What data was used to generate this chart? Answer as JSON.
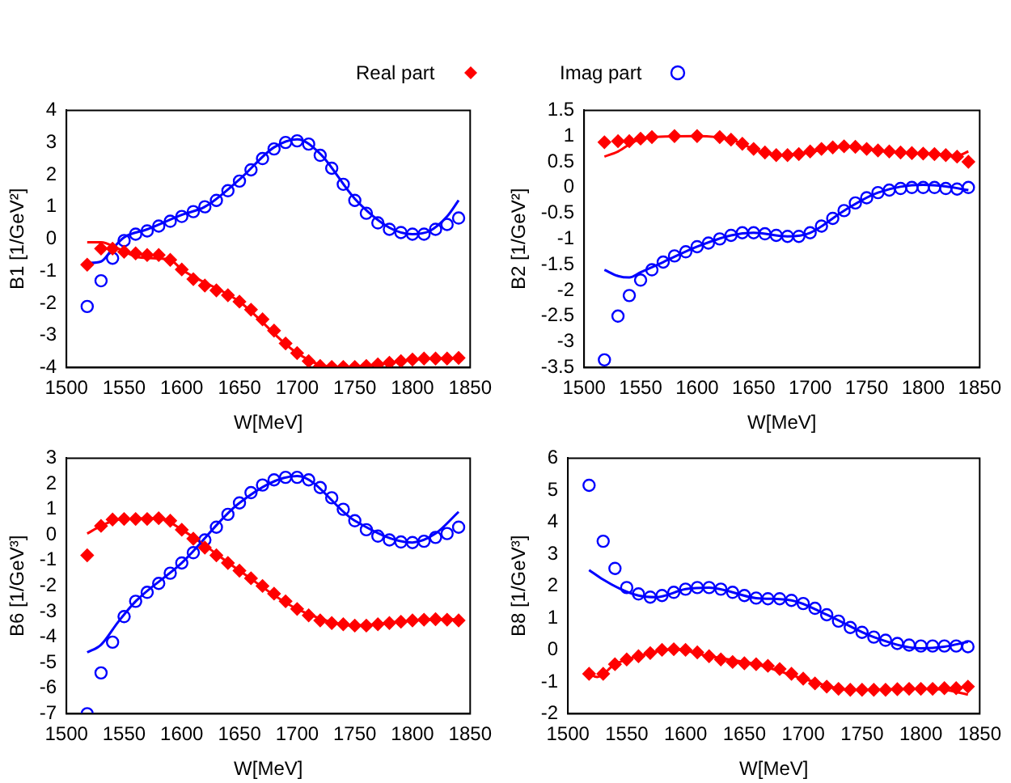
{
  "chart_data": [
    {
      "type": "scatter",
      "xlabel": "W[MeV]",
      "ylabel": "B1 [1/GeV²]",
      "xlim": [
        1500,
        1850
      ],
      "xticks": [
        1500,
        1550,
        1600,
        1650,
        1700,
        1750,
        1800,
        1850
      ],
      "ylim": [
        -4,
        4
      ],
      "yticks": [
        -4,
        -3,
        -2,
        -1,
        0,
        1,
        2,
        3,
        4
      ],
      "grid": false,
      "legend": "top",
      "series": [
        {
          "name": "Real part",
          "color": "#ff0000",
          "marker": "diamond",
          "x": [
            1518,
            1530,
            1540,
            1550,
            1560,
            1570,
            1580,
            1590,
            1600,
            1610,
            1620,
            1630,
            1640,
            1650,
            1660,
            1670,
            1680,
            1690,
            1700,
            1710,
            1720,
            1730,
            1740,
            1750,
            1760,
            1770,
            1780,
            1790,
            1800,
            1810,
            1820,
            1830,
            1840
          ],
          "values": [
            -0.8,
            -0.3,
            -0.3,
            -0.4,
            -0.45,
            -0.5,
            -0.5,
            -0.65,
            -0.95,
            -1.25,
            -1.45,
            -1.6,
            -1.75,
            -1.95,
            -2.2,
            -2.5,
            -2.85,
            -3.25,
            -3.55,
            -3.8,
            -3.95,
            -3.98,
            -3.98,
            -3.98,
            -3.95,
            -3.9,
            -3.85,
            -3.8,
            -3.75,
            -3.72,
            -3.72,
            -3.72,
            -3.7
          ]
        },
        {
          "name": "Imag part",
          "color": "#0000ff",
          "marker": "circle",
          "x": [
            1518,
            1530,
            1540,
            1550,
            1560,
            1570,
            1580,
            1590,
            1600,
            1610,
            1620,
            1630,
            1640,
            1650,
            1660,
            1670,
            1680,
            1690,
            1700,
            1710,
            1720,
            1730,
            1740,
            1750,
            1760,
            1770,
            1780,
            1790,
            1800,
            1810,
            1820,
            1830,
            1840
          ],
          "values": [
            -2.1,
            -1.3,
            -0.6,
            -0.05,
            0.15,
            0.25,
            0.4,
            0.55,
            0.7,
            0.85,
            1.0,
            1.2,
            1.5,
            1.8,
            2.15,
            2.5,
            2.8,
            3.0,
            3.05,
            2.95,
            2.6,
            2.2,
            1.7,
            1.2,
            0.8,
            0.5,
            0.3,
            0.2,
            0.15,
            0.15,
            0.3,
            0.45,
            0.65
          ]
        },
        {
          "type": "line",
          "color": "#ff0000",
          "marker": "none",
          "x": [
            1518,
            1530,
            1545,
            1560,
            1575,
            1590,
            1600,
            1650,
            1700,
            1730,
            1760,
            1800,
            1840
          ],
          "values": [
            -0.1,
            -0.1,
            -0.3,
            -0.55,
            -0.6,
            -0.65,
            -0.95,
            -1.95,
            -3.55,
            -3.98,
            -3.95,
            -3.75,
            -3.7
          ]
        },
        {
          "type": "line",
          "color": "#0000ff",
          "marker": "none",
          "x": [
            1518,
            1530,
            1540,
            1550,
            1570,
            1600,
            1620,
            1650,
            1680,
            1700,
            1720,
            1750,
            1780,
            1800,
            1815,
            1830,
            1840
          ],
          "values": [
            -0.75,
            -0.7,
            -0.3,
            0.05,
            0.3,
            0.75,
            1.0,
            1.85,
            2.85,
            3.1,
            2.65,
            1.25,
            0.35,
            0.15,
            0.25,
            0.7,
            1.2
          ]
        }
      ]
    },
    {
      "type": "scatter",
      "xlabel": "W[MeV]",
      "ylabel": "B2 [1/GeV²]",
      "xlim": [
        1500,
        1850
      ],
      "xticks": [
        1500,
        1550,
        1600,
        1650,
        1700,
        1750,
        1800,
        1850
      ],
      "ylim": [
        -3.5,
        1.5
      ],
      "yticks": [
        -3.5,
        -3,
        -2.5,
        -2,
        -1.5,
        -1,
        -0.5,
        0,
        0.5,
        1,
        1.5
      ],
      "grid": false,
      "series": [
        {
          "color": "#ff0000",
          "marker": "diamond",
          "x": [
            1518,
            1530,
            1540,
            1550,
            1560,
            1580,
            1600,
            1620,
            1630,
            1640,
            1650,
            1660,
            1670,
            1680,
            1690,
            1700,
            1710,
            1720,
            1730,
            1740,
            1750,
            1760,
            1770,
            1780,
            1790,
            1800,
            1810,
            1820,
            1830,
            1840
          ],
          "values": [
            0.88,
            0.9,
            0.9,
            0.95,
            0.98,
            1.0,
            1.0,
            0.98,
            0.93,
            0.85,
            0.75,
            0.68,
            0.63,
            0.63,
            0.65,
            0.7,
            0.75,
            0.78,
            0.8,
            0.79,
            0.75,
            0.72,
            0.7,
            0.68,
            0.67,
            0.66,
            0.65,
            0.63,
            0.6,
            0.5
          ]
        },
        {
          "color": "#0000ff",
          "marker": "circle",
          "x": [
            1518,
            1530,
            1540,
            1550,
            1560,
            1570,
            1580,
            1590,
            1600,
            1610,
            1620,
            1630,
            1640,
            1650,
            1660,
            1670,
            1680,
            1690,
            1700,
            1710,
            1720,
            1730,
            1740,
            1750,
            1760,
            1770,
            1780,
            1790,
            1800,
            1810,
            1820,
            1830,
            1840
          ],
          "values": [
            -3.35,
            -2.5,
            -2.1,
            -1.8,
            -1.6,
            -1.45,
            -1.33,
            -1.25,
            -1.15,
            -1.08,
            -1.0,
            -0.93,
            -0.88,
            -0.88,
            -0.9,
            -0.93,
            -0.95,
            -0.95,
            -0.88,
            -0.75,
            -0.6,
            -0.45,
            -0.3,
            -0.2,
            -0.1,
            -0.05,
            -0.02,
            0.0,
            0.0,
            0.0,
            -0.02,
            -0.03,
            0.0
          ]
        },
        {
          "type": "line",
          "color": "#ff0000",
          "marker": "none",
          "x": [
            1518,
            1530,
            1545,
            1560,
            1600,
            1630,
            1650,
            1670,
            1690,
            1730,
            1760,
            1800,
            1830,
            1840
          ],
          "values": [
            0.6,
            0.7,
            0.9,
            0.98,
            1.0,
            0.93,
            0.75,
            0.63,
            0.65,
            0.8,
            0.72,
            0.66,
            0.62,
            0.7
          ]
        },
        {
          "type": "line",
          "color": "#0000ff",
          "marker": "none",
          "x": [
            1518,
            1530,
            1540,
            1550,
            1570,
            1600,
            1630,
            1650,
            1680,
            1700,
            1730,
            1760,
            1800,
            1820,
            1840
          ],
          "values": [
            -1.6,
            -1.72,
            -1.75,
            -1.65,
            -1.45,
            -1.15,
            -0.93,
            -0.88,
            -0.95,
            -0.88,
            -0.45,
            -0.1,
            0.05,
            0.02,
            -0.05
          ]
        }
      ]
    },
    {
      "type": "scatter",
      "xlabel": "W[MeV]",
      "ylabel": "B6 [1/GeV³]",
      "xlim": [
        1500,
        1850
      ],
      "xticks": [
        1500,
        1550,
        1600,
        1650,
        1700,
        1750,
        1800,
        1850
      ],
      "ylim": [
        -7,
        3
      ],
      "yticks": [
        -7,
        -6,
        -5,
        -4,
        -3,
        -2,
        -1,
        0,
        1,
        2,
        3
      ],
      "grid": false,
      "series": [
        {
          "color": "#ff0000",
          "marker": "diamond",
          "x": [
            1518,
            1530,
            1540,
            1550,
            1560,
            1570,
            1580,
            1590,
            1600,
            1610,
            1620,
            1630,
            1640,
            1650,
            1660,
            1670,
            1680,
            1690,
            1700,
            1710,
            1720,
            1730,
            1740,
            1750,
            1760,
            1770,
            1780,
            1790,
            1800,
            1810,
            1820,
            1830,
            1840
          ],
          "values": [
            -0.8,
            0.35,
            0.6,
            0.62,
            0.62,
            0.62,
            0.65,
            0.55,
            0.2,
            -0.15,
            -0.5,
            -0.8,
            -1.1,
            -1.4,
            -1.7,
            -2.0,
            -2.3,
            -2.6,
            -2.9,
            -3.15,
            -3.35,
            -3.45,
            -3.5,
            -3.55,
            -3.55,
            -3.5,
            -3.45,
            -3.4,
            -3.35,
            -3.32,
            -3.3,
            -3.32,
            -3.35
          ]
        },
        {
          "color": "#0000ff",
          "marker": "circle",
          "x": [
            1518,
            1530,
            1540,
            1550,
            1560,
            1570,
            1580,
            1590,
            1600,
            1610,
            1620,
            1630,
            1640,
            1650,
            1660,
            1670,
            1680,
            1690,
            1700,
            1710,
            1720,
            1730,
            1740,
            1750,
            1760,
            1770,
            1780,
            1790,
            1800,
            1810,
            1820,
            1830,
            1840
          ],
          "values": [
            -7.0,
            -5.4,
            -4.2,
            -3.2,
            -2.6,
            -2.25,
            -1.9,
            -1.5,
            -1.1,
            -0.7,
            -0.2,
            0.3,
            0.8,
            1.25,
            1.65,
            1.95,
            2.15,
            2.25,
            2.25,
            2.15,
            1.85,
            1.45,
            1.0,
            0.55,
            0.2,
            -0.05,
            -0.2,
            -0.28,
            -0.3,
            -0.25,
            -0.1,
            0.05,
            0.3
          ]
        },
        {
          "type": "line",
          "color": "#ff0000",
          "marker": "none",
          "x": [
            1518,
            1530,
            1545,
            1580,
            1600,
            1650,
            1700,
            1750,
            1800,
            1840
          ],
          "values": [
            0.05,
            0.35,
            0.6,
            0.65,
            0.2,
            -1.4,
            -2.9,
            -3.55,
            -3.35,
            -3.3
          ]
        },
        {
          "type": "line",
          "color": "#0000ff",
          "marker": "none",
          "x": [
            1518,
            1530,
            1545,
            1560,
            1600,
            1650,
            1700,
            1750,
            1800,
            1820,
            1840
          ],
          "values": [
            -4.6,
            -4.3,
            -3.4,
            -2.6,
            -1.1,
            1.25,
            2.3,
            0.55,
            -0.3,
            0.05,
            0.9
          ]
        }
      ]
    },
    {
      "type": "scatter",
      "xlabel": "W[MeV]",
      "ylabel": "B8 [1/GeV³]",
      "xlim": [
        1500,
        1850
      ],
      "xticks": [
        1500,
        1550,
        1600,
        1650,
        1700,
        1750,
        1800,
        1850
      ],
      "ylim": [
        -2,
        6
      ],
      "yticks": [
        -2,
        -1,
        0,
        1,
        2,
        3,
        4,
        5,
        6
      ],
      "grid": false,
      "series": [
        {
          "color": "#ff0000",
          "marker": "diamond",
          "x": [
            1518,
            1530,
            1540,
            1550,
            1560,
            1570,
            1580,
            1590,
            1600,
            1610,
            1620,
            1630,
            1640,
            1650,
            1660,
            1670,
            1680,
            1690,
            1700,
            1710,
            1720,
            1730,
            1740,
            1750,
            1760,
            1770,
            1780,
            1790,
            1800,
            1810,
            1820,
            1830,
            1840
          ],
          "values": [
            -0.75,
            -0.75,
            -0.45,
            -0.3,
            -0.2,
            -0.1,
            0.0,
            0.02,
            0.0,
            -0.08,
            -0.2,
            -0.3,
            -0.38,
            -0.42,
            -0.45,
            -0.5,
            -0.6,
            -0.75,
            -0.9,
            -1.05,
            -1.15,
            -1.22,
            -1.25,
            -1.25,
            -1.25,
            -1.25,
            -1.23,
            -1.22,
            -1.22,
            -1.22,
            -1.2,
            -1.2,
            -1.15
          ]
        },
        {
          "color": "#0000ff",
          "marker": "circle",
          "x": [
            1518,
            1530,
            1540,
            1550,
            1560,
            1570,
            1580,
            1590,
            1600,
            1610,
            1620,
            1630,
            1640,
            1650,
            1660,
            1670,
            1680,
            1690,
            1700,
            1710,
            1720,
            1730,
            1740,
            1750,
            1760,
            1770,
            1780,
            1790,
            1800,
            1810,
            1820,
            1830,
            1840
          ],
          "values": [
            5.15,
            3.4,
            2.55,
            1.95,
            1.75,
            1.65,
            1.7,
            1.8,
            1.9,
            1.95,
            1.95,
            1.9,
            1.8,
            1.7,
            1.62,
            1.6,
            1.6,
            1.55,
            1.45,
            1.3,
            1.1,
            0.9,
            0.7,
            0.55,
            0.4,
            0.3,
            0.2,
            0.15,
            0.12,
            0.12,
            0.12,
            0.12,
            0.1
          ]
        },
        {
          "type": "line",
          "color": "#ff0000",
          "marker": "none",
          "x": [
            1518,
            1525,
            1540,
            1560,
            1590,
            1620,
            1660,
            1700,
            1740,
            1800,
            1820,
            1840
          ],
          "values": [
            -0.75,
            -0.85,
            -0.45,
            -0.2,
            0.02,
            -0.2,
            -0.45,
            -0.9,
            -1.25,
            -1.22,
            -1.25,
            -1.4
          ]
        },
        {
          "type": "line",
          "color": "#0000ff",
          "marker": "none",
          "x": [
            1518,
            1530,
            1545,
            1560,
            1575,
            1600,
            1620,
            1660,
            1690,
            1720,
            1760,
            1800,
            1820,
            1840
          ],
          "values": [
            2.5,
            2.2,
            1.9,
            1.7,
            1.65,
            1.9,
            1.95,
            1.62,
            1.55,
            1.1,
            0.4,
            0.05,
            0.1,
            0.25
          ]
        }
      ]
    }
  ]
}
